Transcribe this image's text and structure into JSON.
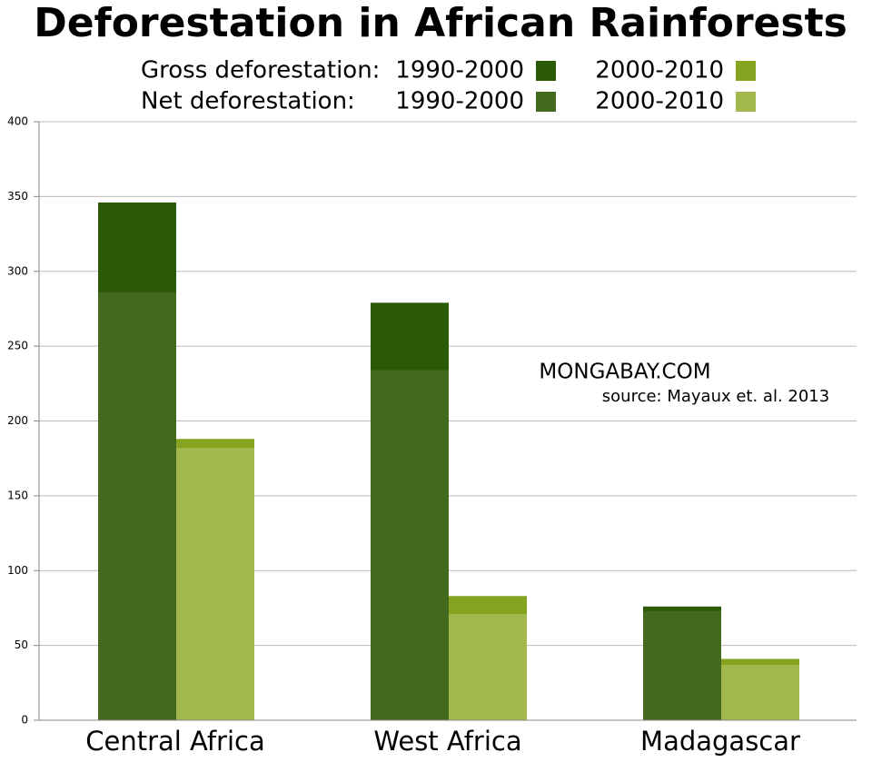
{
  "chart_data": {
    "type": "overlay-bar",
    "title": "Deforestation in African Rainforests",
    "categories": [
      "Central Africa",
      "West Africa",
      "Madagascar"
    ],
    "measures": [
      {
        "label": "Gross deforestation:",
        "series": [
          {
            "name": "1990-2000",
            "color": "#2b5a07",
            "values": [
              346,
              279,
              76
            ]
          },
          {
            "name": "2000-2010",
            "color": "#84a31f",
            "values": [
              188,
              83,
              41
            ]
          }
        ]
      },
      {
        "label": "Net deforestation:",
        "series": [
          {
            "name": "1990-2000",
            "color": "#43691c",
            "values": [
              286,
              234,
              73
            ]
          },
          {
            "name": "2000-2010",
            "color": "#a3b84c",
            "values": [
              182,
              71,
              37
            ]
          }
        ]
      }
    ],
    "ylim": [
      0,
      400
    ],
    "yticks": [
      0,
      50,
      100,
      150,
      200,
      250,
      300,
      350,
      400
    ],
    "grid": true,
    "annotations": [
      "MONGABAY.COM",
      "source: Mayaux et. al. 2013"
    ]
  }
}
